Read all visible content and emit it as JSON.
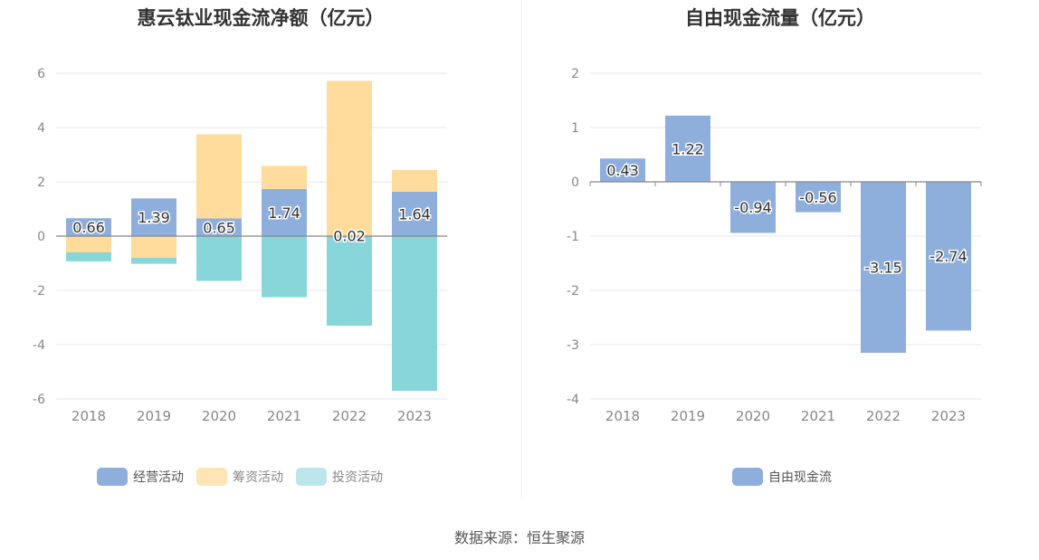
{
  "source": "数据来源：恒生聚源",
  "colors": {
    "operating": "#8eaedb",
    "financing": "#ffdb9c",
    "investing": "#88d6da",
    "fcf": "#8eaedb",
    "grid": "#e4e7f0",
    "axis": "#888888",
    "tick": "#888888",
    "label": "#333333"
  },
  "chart_data": [
    {
      "type": "bar",
      "stacked": true,
      "title": "惠云钛业现金流净额（亿元）",
      "categories": [
        "2018",
        "2019",
        "2020",
        "2021",
        "2022",
        "2023"
      ],
      "ylim": [
        -6,
        6
      ],
      "yticks": [
        -6,
        -4,
        -2,
        0,
        2,
        4,
        6
      ],
      "series": [
        {
          "name": "经营活动",
          "key": "operating",
          "values": [
            0.66,
            1.39,
            0.65,
            1.74,
            0.02,
            1.64
          ],
          "show_labels": true
        },
        {
          "name": "筹资活动",
          "key": "financing",
          "values": [
            -0.6,
            -0.8,
            3.1,
            0.85,
            5.7,
            0.8
          ],
          "show_labels": false
        },
        {
          "name": "投资活动",
          "key": "investing",
          "values": [
            -0.33,
            -0.22,
            -1.65,
            -2.25,
            -3.3,
            -5.7
          ],
          "show_labels": false
        }
      ],
      "legend_position": "bottom"
    },
    {
      "type": "bar",
      "stacked": false,
      "title": "自由现金流量（亿元）",
      "categories": [
        "2018",
        "2019",
        "2020",
        "2021",
        "2022",
        "2023"
      ],
      "ylim": [
        -4,
        2
      ],
      "yticks": [
        -4,
        -3,
        -2,
        -1,
        0,
        1,
        2
      ],
      "series": [
        {
          "name": "自由现金流",
          "key": "fcf",
          "values": [
            0.43,
            1.22,
            -0.94,
            -0.56,
            -3.15,
            -2.74
          ],
          "show_labels": true
        }
      ],
      "legend_position": "bottom"
    }
  ]
}
